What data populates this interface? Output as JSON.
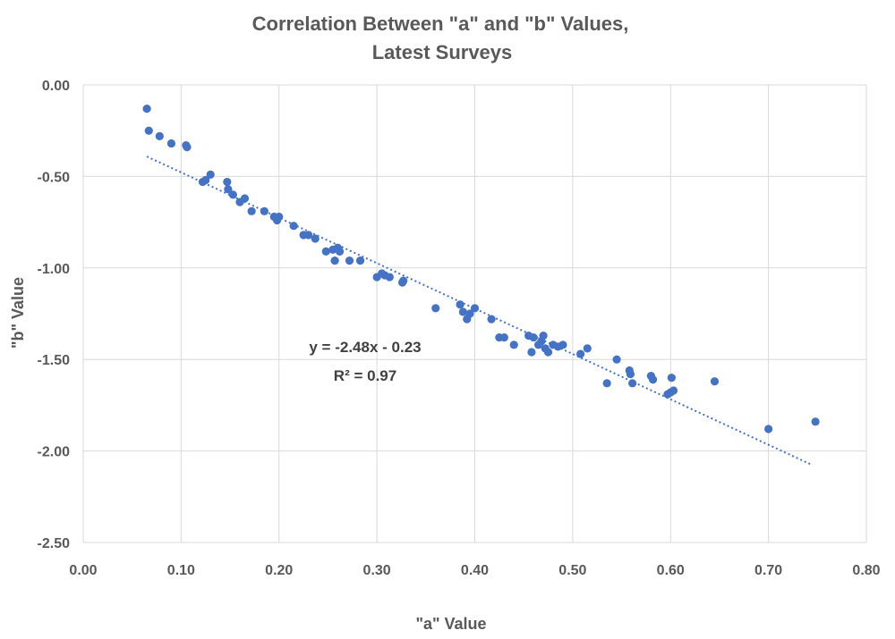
{
  "chart_data": {
    "type": "scatter",
    "title": "Correlation Between \"a\" and \"b\" Values,",
    "subtitle": "Latest Surveys",
    "xlabel": "\"a\" Value",
    "ylabel": "\"b\" Value",
    "xlim": [
      0,
      0.8
    ],
    "ylim": [
      -2.5,
      0
    ],
    "x_ticks": [
      "0.00",
      "0.10",
      "0.20",
      "0.30",
      "0.40",
      "0.50",
      "0.60",
      "0.70",
      "0.80"
    ],
    "y_ticks": [
      "0.00",
      "-0.50",
      "-1.00",
      "-1.50",
      "-2.00",
      "-2.50"
    ],
    "grid": true,
    "marker_color": "#4472C4",
    "trendline": {
      "type": "linear",
      "slope": -2.48,
      "intercept": -0.23,
      "x_range": [
        0.065,
        0.745
      ],
      "style": "dotted",
      "color": "#4472C4"
    },
    "annotations": [
      "y = -2.48x - 0.23",
      "R² = 0.97"
    ],
    "points": [
      [
        0.065,
        -0.13
      ],
      [
        0.067,
        -0.25
      ],
      [
        0.078,
        -0.28
      ],
      [
        0.09,
        -0.32
      ],
      [
        0.105,
        -0.33
      ],
      [
        0.106,
        -0.34
      ],
      [
        0.122,
        -0.53
      ],
      [
        0.125,
        -0.52
      ],
      [
        0.13,
        -0.49
      ],
      [
        0.147,
        -0.53
      ],
      [
        0.148,
        -0.57
      ],
      [
        0.153,
        -0.6
      ],
      [
        0.16,
        -0.64
      ],
      [
        0.165,
        -0.62
      ],
      [
        0.172,
        -0.69
      ],
      [
        0.185,
        -0.69
      ],
      [
        0.195,
        -0.72
      ],
      [
        0.198,
        -0.74
      ],
      [
        0.2,
        -0.72
      ],
      [
        0.215,
        -0.77
      ],
      [
        0.225,
        -0.82
      ],
      [
        0.23,
        -0.82
      ],
      [
        0.237,
        -0.84
      ],
      [
        0.248,
        -0.91
      ],
      [
        0.255,
        -0.9
      ],
      [
        0.257,
        -0.96
      ],
      [
        0.26,
        -0.89
      ],
      [
        0.262,
        -0.91
      ],
      [
        0.272,
        -0.96
      ],
      [
        0.283,
        -0.96
      ],
      [
        0.3,
        -1.05
      ],
      [
        0.305,
        -1.03
      ],
      [
        0.308,
        -1.04
      ],
      [
        0.313,
        -1.05
      ],
      [
        0.326,
        -1.08
      ],
      [
        0.327,
        -1.07
      ],
      [
        0.36,
        -1.22
      ],
      [
        0.385,
        -1.2
      ],
      [
        0.388,
        -1.24
      ],
      [
        0.392,
        -1.28
      ],
      [
        0.395,
        -1.25
      ],
      [
        0.4,
        -1.22
      ],
      [
        0.417,
        -1.28
      ],
      [
        0.425,
        -1.38
      ],
      [
        0.43,
        -1.38
      ],
      [
        0.44,
        -1.42
      ],
      [
        0.455,
        -1.37
      ],
      [
        0.458,
        -1.46
      ],
      [
        0.46,
        -1.38
      ],
      [
        0.465,
        -1.42
      ],
      [
        0.468,
        -1.4
      ],
      [
        0.47,
        -1.37
      ],
      [
        0.472,
        -1.44
      ],
      [
        0.475,
        -1.46
      ],
      [
        0.48,
        -1.42
      ],
      [
        0.485,
        -1.43
      ],
      [
        0.49,
        -1.42
      ],
      [
        0.508,
        -1.47
      ],
      [
        0.515,
        -1.44
      ],
      [
        0.535,
        -1.63
      ],
      [
        0.545,
        -1.5
      ],
      [
        0.558,
        -1.56
      ],
      [
        0.559,
        -1.58
      ],
      [
        0.561,
        -1.63
      ],
      [
        0.58,
        -1.59
      ],
      [
        0.582,
        -1.61
      ],
      [
        0.597,
        -1.69
      ],
      [
        0.6,
        -1.68
      ],
      [
        0.601,
        -1.6
      ],
      [
        0.603,
        -1.67
      ],
      [
        0.645,
        -1.62
      ],
      [
        0.7,
        -1.88
      ],
      [
        0.748,
        -1.84
      ]
    ]
  }
}
